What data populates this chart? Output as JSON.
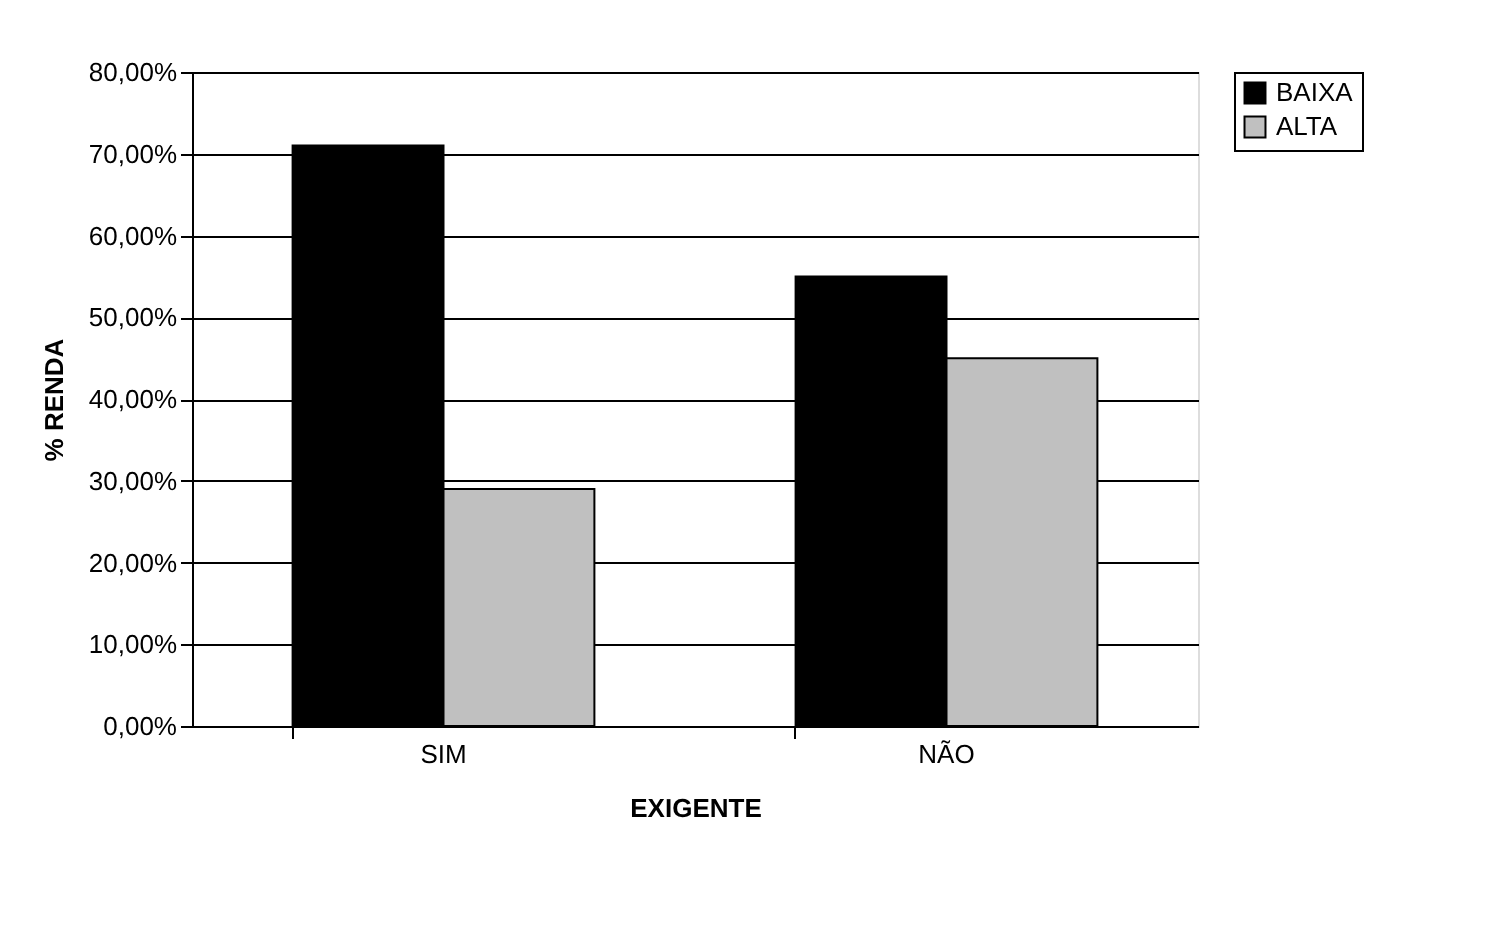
{
  "chart_data": {
    "type": "bar",
    "xlabel": "EXIGENTE",
    "ylabel": "% RENDA",
    "categories": [
      "SIM",
      "NÃO"
    ],
    "series": [
      {
        "name": "BAIXA",
        "color": "#000000",
        "values": [
          71,
          55
        ]
      },
      {
        "name": "ALTA",
        "color": "#c0c0c0",
        "values": [
          29,
          45
        ]
      }
    ],
    "ylim": [
      0,
      80
    ],
    "yticks": [
      {
        "value": 0,
        "label": "0,00%"
      },
      {
        "value": 10,
        "label": "10,00%"
      },
      {
        "value": 20,
        "label": "20,00%"
      },
      {
        "value": 30,
        "label": "30,00%"
      },
      {
        "value": 40,
        "label": "40,00%"
      },
      {
        "value": 50,
        "label": "50,00%"
      },
      {
        "value": 60,
        "label": "60,00%"
      },
      {
        "value": 70,
        "label": "70,00%"
      },
      {
        "value": 80,
        "label": "80,00%"
      }
    ],
    "grid": "y",
    "legend": "right"
  }
}
